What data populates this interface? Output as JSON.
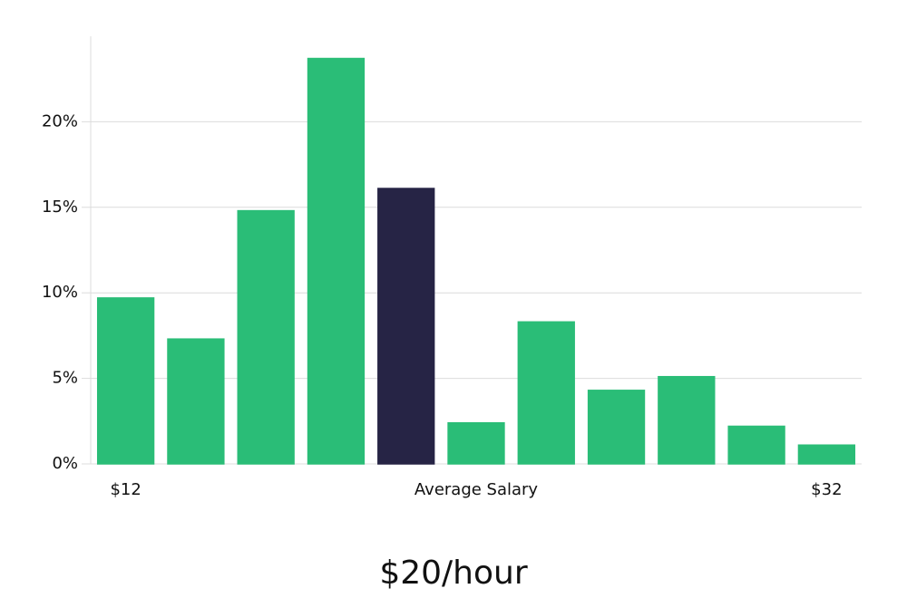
{
  "chart_data": {
    "type": "bar",
    "categories": [
      "$12",
      null,
      null,
      null,
      null,
      "Average Salary",
      null,
      null,
      null,
      null,
      "$32"
    ],
    "values": [
      9.7,
      7.3,
      14.8,
      23.7,
      16.1,
      2.4,
      8.3,
      4.3,
      5.1,
      2.2,
      1.1
    ],
    "colors": [
      "#2abd77",
      "#2abd77",
      "#2abd77",
      "#2abd77",
      "#262445",
      "#2abd77",
      "#2abd77",
      "#2abd77",
      "#2abd77",
      "#2abd77",
      "#2abd77"
    ],
    "ylim": [
      0,
      25
    ],
    "yticks": [
      {
        "value": 0,
        "label": "0%"
      },
      {
        "value": 5,
        "label": "5%"
      },
      {
        "value": 10,
        "label": "10%"
      },
      {
        "value": 15,
        "label": "15%"
      },
      {
        "value": 20,
        "label": "20%"
      }
    ],
    "grid": true,
    "subtitle": "$20/hour"
  }
}
